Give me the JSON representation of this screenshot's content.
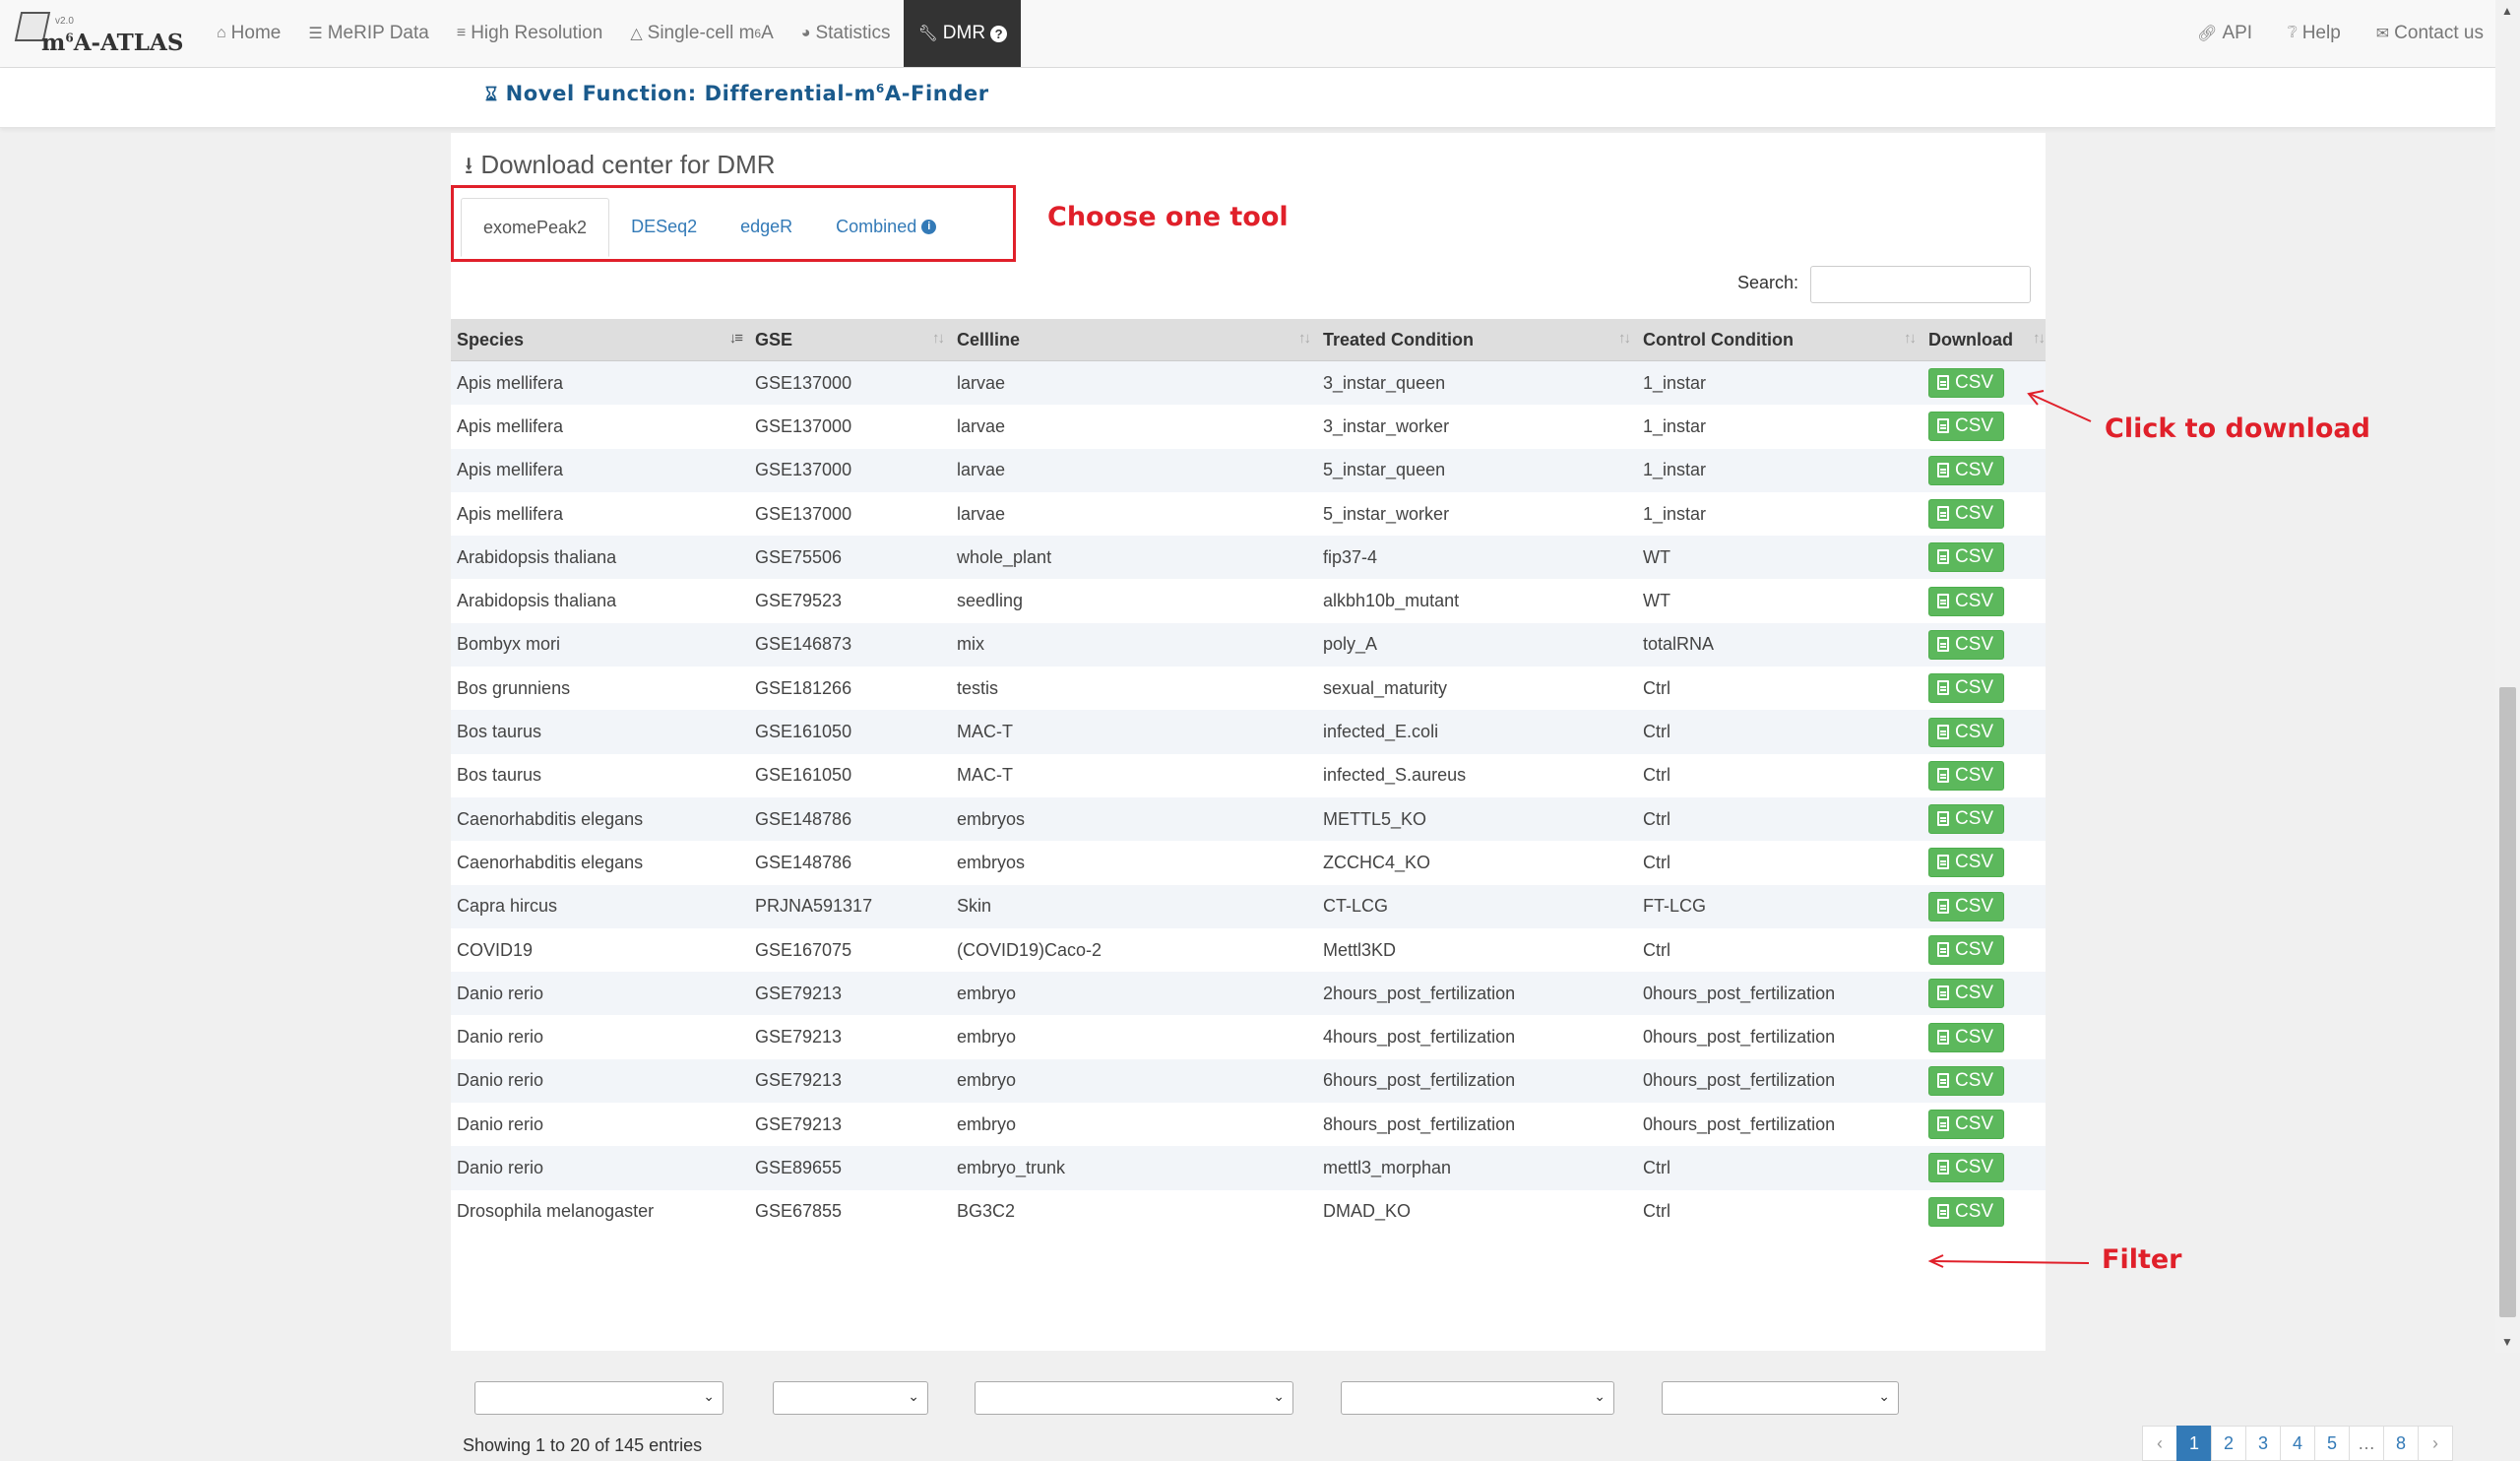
{
  "brand": {
    "name_prefix": "m",
    "name_sup": "6",
    "name_suffix": "A-ATLAS",
    "version": "v2.0"
  },
  "nav": {
    "home": "Home",
    "merip": "MeRIP Data",
    "high_res": "High Resolution",
    "single_cell_prefix": "Single-cell m",
    "single_cell_sup": "6",
    "single_cell_suffix": "A",
    "statistics": "Statistics",
    "dmr": "DMR",
    "api": "API",
    "help": "Help",
    "contact": "Contact us"
  },
  "novel": {
    "prefix": "Novel Function: Differential-m",
    "sup": "6",
    "suffix": "A-Finder"
  },
  "download_title": "Download center for DMR",
  "tabs": [
    "exomePeak2",
    "DESeq2",
    "edgeR",
    "Combined"
  ],
  "active_tab": "exomePeak2",
  "annotations": {
    "choose": "Choose one tool",
    "click": "Click to download",
    "filter": "Filter"
  },
  "search": {
    "label": "Search:",
    "value": ""
  },
  "table": {
    "headers": [
      "Species",
      "GSE",
      "Cellline",
      "Treated Condition",
      "Control Condition",
      "Download"
    ],
    "download_label": "CSV",
    "rows": [
      [
        "Apis mellifera",
        "GSE137000",
        "larvae",
        "3_instar_queen",
        "1_instar"
      ],
      [
        "Apis mellifera",
        "GSE137000",
        "larvae",
        "3_instar_worker",
        "1_instar"
      ],
      [
        "Apis mellifera",
        "GSE137000",
        "larvae",
        "5_instar_queen",
        "1_instar"
      ],
      [
        "Apis mellifera",
        "GSE137000",
        "larvae",
        "5_instar_worker",
        "1_instar"
      ],
      [
        "Arabidopsis thaliana",
        "GSE75506",
        "whole_plant",
        "fip37-4",
        "WT"
      ],
      [
        "Arabidopsis thaliana",
        "GSE79523",
        "seedling",
        "alkbh10b_mutant",
        "WT"
      ],
      [
        "Bombyx mori",
        "GSE146873",
        "mix",
        "poly_A",
        "totalRNA"
      ],
      [
        "Bos grunniens",
        "GSE181266",
        "testis",
        "sexual_maturity",
        "Ctrl"
      ],
      [
        "Bos taurus",
        "GSE161050",
        "MAC-T",
        "infected_E.coli",
        "Ctrl"
      ],
      [
        "Bos taurus",
        "GSE161050",
        "MAC-T",
        "infected_S.aureus",
        "Ctrl"
      ],
      [
        "Caenorhabditis elegans",
        "GSE148786",
        "embryos",
        "METTL5_KO",
        "Ctrl"
      ],
      [
        "Caenorhabditis elegans",
        "GSE148786",
        "embryos",
        "ZCCHC4_KO",
        "Ctrl"
      ],
      [
        "Capra hircus",
        "PRJNA591317",
        "Skin",
        "CT-LCG",
        "FT-LCG"
      ],
      [
        "COVID19",
        "GSE167075",
        "(COVID19)Caco-2",
        "Mettl3KD",
        "Ctrl"
      ],
      [
        "Danio rerio",
        "GSE79213",
        "embryo",
        "2hours_post_fertilization",
        "0hours_post_fertilization"
      ],
      [
        "Danio rerio",
        "GSE79213",
        "embryo",
        "4hours_post_fertilization",
        "0hours_post_fertilization"
      ],
      [
        "Danio rerio",
        "GSE79213",
        "embryo",
        "6hours_post_fertilization",
        "0hours_post_fertilization"
      ],
      [
        "Danio rerio",
        "GSE79213",
        "embryo",
        "8hours_post_fertilization",
        "0hours_post_fertilization"
      ],
      [
        "Danio rerio",
        "GSE89655",
        "embryo_trunk",
        "mettl3_morphan",
        "Ctrl"
      ],
      [
        "Drosophila melanogaster",
        "GSE67855",
        "BG3C2",
        "DMAD_KO",
        "Ctrl"
      ]
    ]
  },
  "info": "Showing 1 to 20 of 145 entries",
  "pagination": {
    "prev": "‹",
    "pages": [
      "1",
      "2",
      "3",
      "4",
      "5",
      "…",
      "8"
    ],
    "next": "›",
    "current": "1"
  },
  "colors": {
    "annotation_red": "#e0202a",
    "csv_green": "#5cb85c",
    "link_blue": "#337ab7",
    "nav_active": "#333333"
  }
}
